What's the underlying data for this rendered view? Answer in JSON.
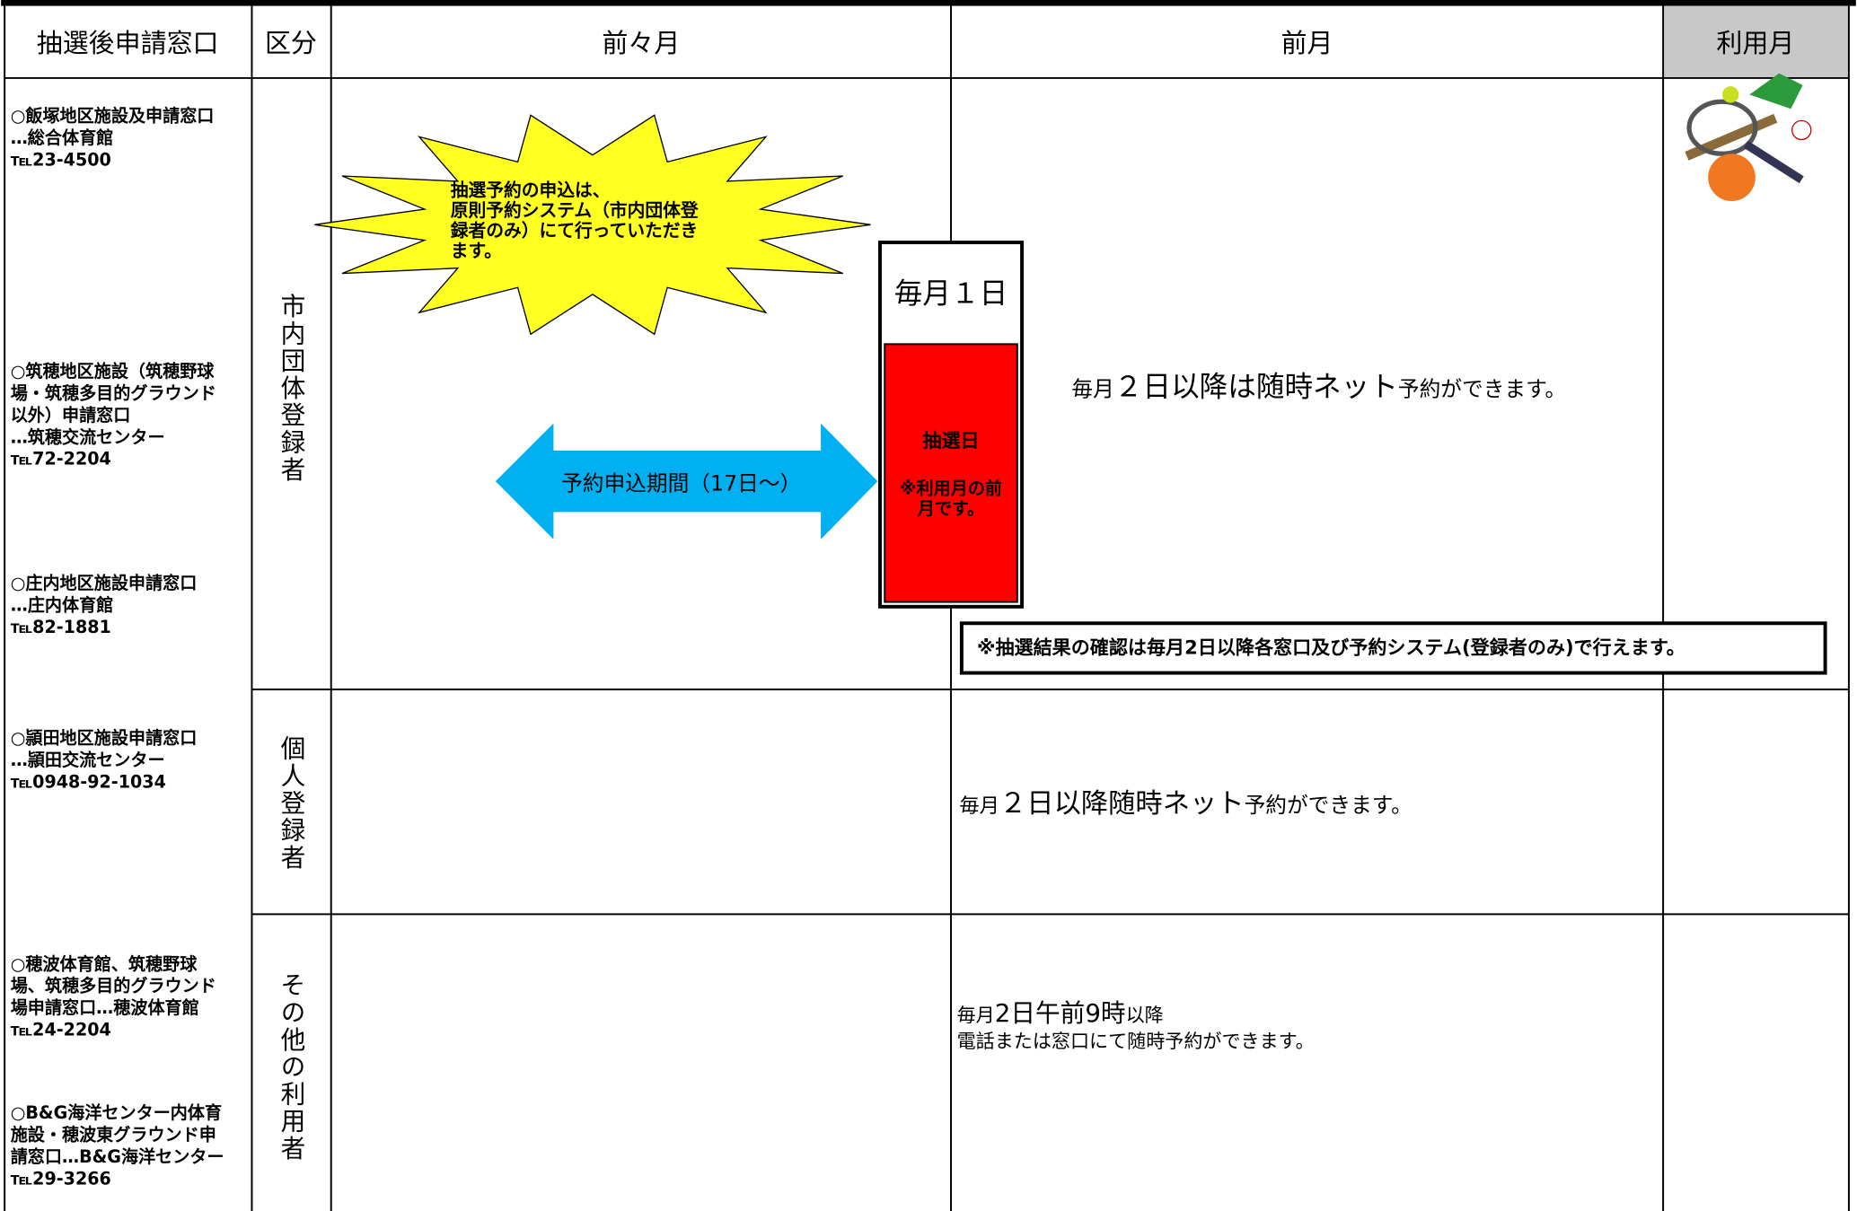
{
  "table": {
    "headers": [
      "抽選後申請窓口",
      "区分",
      "前々月",
      "前月",
      "利用月"
    ],
    "windows": [
      [
        "○飯塚地区施設及申請窓口",
        "…総合体育館",
        "℡23-4500"
      ],
      [
        "○筑穂地区施設（筑穂野球",
        "場・筑穂多目的グラウンド",
        "以外）申請窓口",
        "…筑穂交流センター",
        "℡72-2204"
      ],
      [
        "○庄内地区施設申請窓口",
        "…庄内体育館",
        "℡82-1881"
      ],
      [
        "○頴田地区施設申請窓口",
        "…頴田交流センター",
        "℡0948-92-1034"
      ],
      [
        "○穂波体育館、筑穂野球",
        "場、筑穂多目的グラウンド",
        "場申請窓口…穂波体育館",
        "℡24-2204"
      ],
      [
        "○B&G海洋センター内体育",
        "施設・穂波東グラウンド申",
        "請窓口…B&G海洋センター",
        "℡29-3266"
      ]
    ],
    "categories": [
      "市内団体登録者",
      "個人登録者",
      "その他の利用者"
    ]
  },
  "callouts": {
    "starburst": [
      "抽選予約の申込は、",
      "原則予約システム（市内団体登",
      "録者のみ）にて行っていただき",
      "ます。"
    ],
    "arrow": "予約申込期間（17日～）",
    "lottery_day": {
      "date": "毎月１日",
      "title": "抽選日",
      "note": [
        "※利用月の前",
        "月です。"
      ]
    },
    "group_net": [
      "毎月",
      "２日以降は随時ネット",
      "予約ができます。"
    ],
    "result_note": "※抽選結果の確認は毎月2日以降各窓口及び予約システム(登録者のみ)で行えます。",
    "personal_net": [
      "毎月",
      "２日以降随時ネット",
      "予約ができます。"
    ],
    "other": {
      "first": [
        "毎月",
        "2日午前9時",
        "以降"
      ],
      "second": "電話または窓口にて随時予約ができます。"
    }
  }
}
